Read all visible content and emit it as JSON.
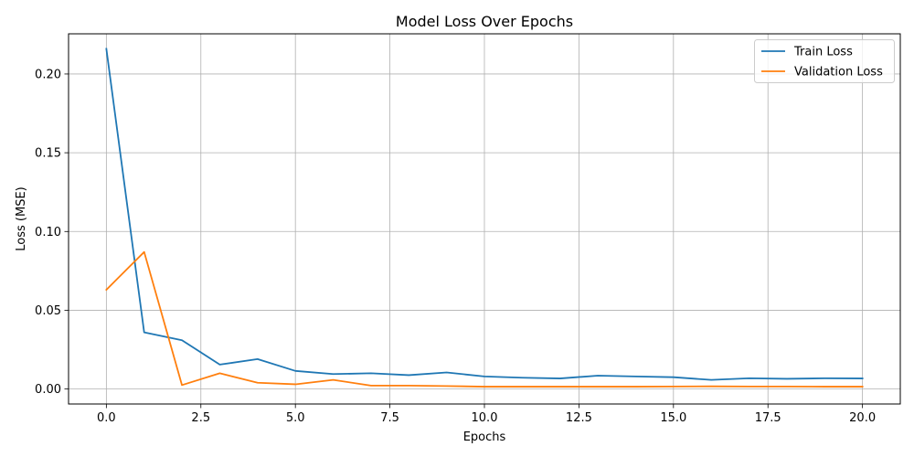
{
  "chart_data": {
    "type": "line",
    "title": "Model Loss Over Epochs",
    "xlabel": "Epochs",
    "ylabel": "Loss (MSE)",
    "xlim": [
      -1.0,
      21.0
    ],
    "ylim": [
      -0.0095,
      0.2255
    ],
    "xticks": [
      0.0,
      2.5,
      5.0,
      7.5,
      10.0,
      12.5,
      15.0,
      17.5,
      20.0
    ],
    "xtick_labels": [
      "0.0",
      "2.5",
      "5.0",
      "7.5",
      "10.0",
      "12.5",
      "15.0",
      "17.5",
      "20.0"
    ],
    "yticks": [
      0.0,
      0.05,
      0.1,
      0.15,
      0.2
    ],
    "ytick_labels": [
      "0.00",
      "0.05",
      "0.10",
      "0.15",
      "0.20"
    ],
    "grid": true,
    "legend_position": "top-right",
    "x": [
      0,
      1,
      2,
      3,
      4,
      5,
      6,
      7,
      8,
      9,
      10,
      11,
      12,
      13,
      14,
      15,
      16,
      17,
      18,
      19,
      20
    ],
    "series": [
      {
        "name": "Train Loss",
        "color": "#1f77b4",
        "values": [
          0.216,
          0.036,
          0.031,
          0.0155,
          0.019,
          0.0115,
          0.0095,
          0.01,
          0.0088,
          0.0105,
          0.008,
          0.0072,
          0.0067,
          0.0085,
          0.008,
          0.0075,
          0.0058,
          0.0068,
          0.0065,
          0.0068,
          0.0067
        ]
      },
      {
        "name": "Validation Loss",
        "color": "#ff7f0e",
        "values": [
          0.063,
          0.087,
          0.0025,
          0.01,
          0.004,
          0.003,
          0.0058,
          0.0022,
          0.0022,
          0.0019,
          0.0015,
          0.0015,
          0.0015,
          0.0015,
          0.0015,
          0.0016,
          0.0017,
          0.0016,
          0.0016,
          0.0015,
          0.0015
        ]
      }
    ]
  }
}
